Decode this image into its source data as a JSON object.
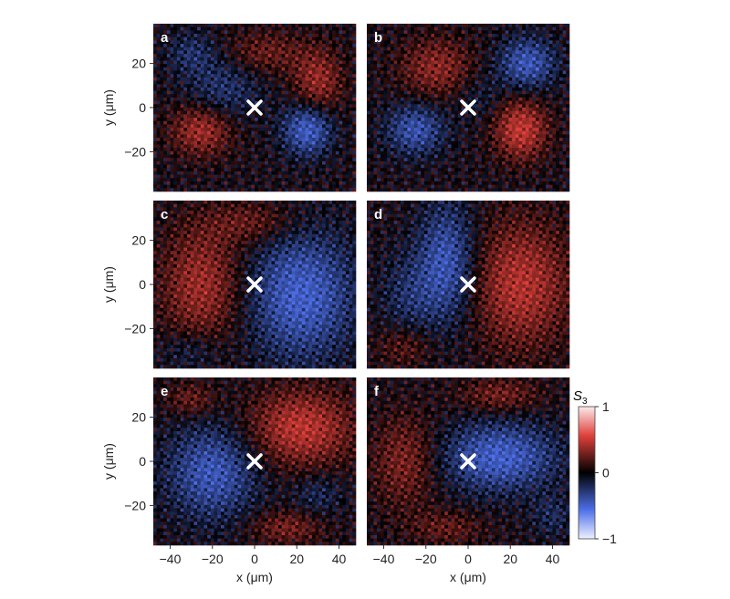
{
  "chart_data": {
    "type": "heatmap",
    "colorbar": {
      "title_main": "S",
      "title_sub": "3",
      "range": [
        -1,
        1
      ],
      "ticks": [
        {
          "value": 1,
          "label": "1"
        },
        {
          "value": 0,
          "label": "0"
        },
        {
          "value": -1,
          "label": "−1"
        }
      ],
      "colors": {
        "positive": "#e0403a",
        "zero": "#000000",
        "negative": "#4d6fe8"
      }
    },
    "axes": {
      "xlabel": "x (μm)",
      "ylabel": "y (μm)",
      "xlim": [
        -48,
        48
      ],
      "ylim": [
        -38,
        38
      ],
      "xticks": [
        {
          "value": -40,
          "label": "−40"
        },
        {
          "value": -20,
          "label": "−20"
        },
        {
          "value": 0,
          "label": "0"
        },
        {
          "value": 20,
          "label": "20"
        },
        {
          "value": 40,
          "label": "40"
        }
      ],
      "yticks": [
        {
          "value": 20,
          "label": "20"
        },
        {
          "value": 0,
          "label": "0"
        },
        {
          "value": -20,
          "label": "−20"
        }
      ]
    },
    "panels": [
      {
        "label": "a",
        "cross": {
          "x": 0,
          "y": 0
        },
        "blobs": [
          {
            "cx": -25,
            "cy": -10,
            "rx": 15,
            "ry": 12,
            "s": 0.7
          },
          {
            "cx": 30,
            "cy": 12,
            "rx": 12,
            "ry": 15,
            "s": 0.6
          },
          {
            "cx": 5,
            "cy": 25,
            "rx": 20,
            "ry": 10,
            "s": 0.4
          },
          {
            "cx": 25,
            "cy": -10,
            "rx": 12,
            "ry": 12,
            "s": -0.85
          },
          {
            "cx": -15,
            "cy": 8,
            "rx": 18,
            "ry": 16,
            "s": -0.4
          },
          {
            "cx": -30,
            "cy": 25,
            "rx": 12,
            "ry": 10,
            "s": -0.35
          }
        ]
      },
      {
        "label": "b",
        "cross": {
          "x": 0,
          "y": 0
        },
        "blobs": [
          {
            "cx": 25,
            "cy": -10,
            "rx": 13,
            "ry": 14,
            "s": 0.85
          },
          {
            "cx": -15,
            "cy": 18,
            "rx": 18,
            "ry": 14,
            "s": 0.55
          },
          {
            "cx": 28,
            "cy": 20,
            "rx": 14,
            "ry": 12,
            "s": -0.75
          },
          {
            "cx": -25,
            "cy": -10,
            "rx": 14,
            "ry": 12,
            "s": -0.7
          },
          {
            "cx": 5,
            "cy": 5,
            "rx": 12,
            "ry": 12,
            "s": -0.2
          }
        ]
      },
      {
        "label": "c",
        "cross": {
          "x": 0,
          "y": 0
        },
        "blobs": [
          {
            "cx": 22,
            "cy": -5,
            "rx": 26,
            "ry": 30,
            "s": -0.85
          },
          {
            "cx": -25,
            "cy": 0,
            "rx": 20,
            "ry": 28,
            "s": 0.65
          },
          {
            "cx": 0,
            "cy": 28,
            "rx": 22,
            "ry": 10,
            "s": 0.4
          },
          {
            "cx": -30,
            "cy": -30,
            "rx": 15,
            "ry": 10,
            "s": -0.3
          }
        ]
      },
      {
        "label": "d",
        "cross": {
          "x": 0,
          "y": 0
        },
        "blobs": [
          {
            "cx": 25,
            "cy": 0,
            "rx": 24,
            "ry": 30,
            "s": 0.75
          },
          {
            "cx": -10,
            "cy": 10,
            "rx": 14,
            "ry": 28,
            "s": -0.75
          },
          {
            "cx": -28,
            "cy": -5,
            "rx": 14,
            "ry": 20,
            "s": -0.35
          },
          {
            "cx": -30,
            "cy": -28,
            "rx": 14,
            "ry": 10,
            "s": 0.35
          }
        ]
      },
      {
        "label": "e",
        "cross": {
          "x": 0,
          "y": 0
        },
        "blobs": [
          {
            "cx": 22,
            "cy": 15,
            "rx": 26,
            "ry": 18,
            "s": 0.8
          },
          {
            "cx": -20,
            "cy": -5,
            "rx": 22,
            "ry": 22,
            "s": -0.75
          },
          {
            "cx": 15,
            "cy": -30,
            "rx": 18,
            "ry": 8,
            "s": 0.45
          },
          {
            "cx": -30,
            "cy": 28,
            "rx": 12,
            "ry": 8,
            "s": 0.4
          },
          {
            "cx": 30,
            "cy": -15,
            "rx": 12,
            "ry": 10,
            "s": -0.3
          }
        ]
      },
      {
        "label": "f",
        "cross": {
          "x": 0,
          "y": 0
        },
        "blobs": [
          {
            "cx": 15,
            "cy": 2,
            "rx": 28,
            "ry": 16,
            "s": -0.85
          },
          {
            "cx": -30,
            "cy": 0,
            "rx": 16,
            "ry": 22,
            "s": 0.5
          },
          {
            "cx": 15,
            "cy": 30,
            "rx": 20,
            "ry": 8,
            "s": 0.45
          },
          {
            "cx": -10,
            "cy": -30,
            "rx": 18,
            "ry": 8,
            "s": 0.35
          },
          {
            "cx": 40,
            "cy": -25,
            "rx": 10,
            "ry": 10,
            "s": -0.3
          }
        ]
      }
    ]
  }
}
